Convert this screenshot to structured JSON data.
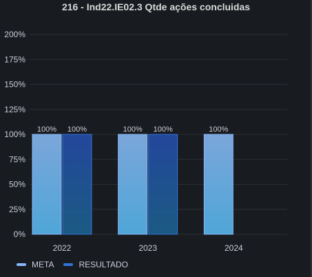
{
  "panel": {
    "title": "216 - Ind22.IE02.3 Qtde ações concluidas"
  },
  "chart_data": {
    "type": "bar",
    "categories": [
      "2022",
      "2023",
      "2024"
    ],
    "series": [
      {
        "name": "META",
        "values": [
          100,
          100,
          100
        ],
        "labels": [
          "100%",
          "100%",
          "100%"
        ],
        "color": "#8ab8ff"
      },
      {
        "name": "RESULTADO",
        "values": [
          100,
          100,
          null
        ],
        "labels": [
          "100%",
          "100%",
          null
        ],
        "color": "#3274d9"
      }
    ],
    "y_ticks": [
      "0%",
      "25%",
      "50%",
      "75%",
      "100%",
      "125%",
      "150%",
      "175%",
      "200%"
    ],
    "ylim": [
      0,
      200
    ],
    "y_unit": "%",
    "grid": true,
    "legend_position": "bottom-left"
  }
}
